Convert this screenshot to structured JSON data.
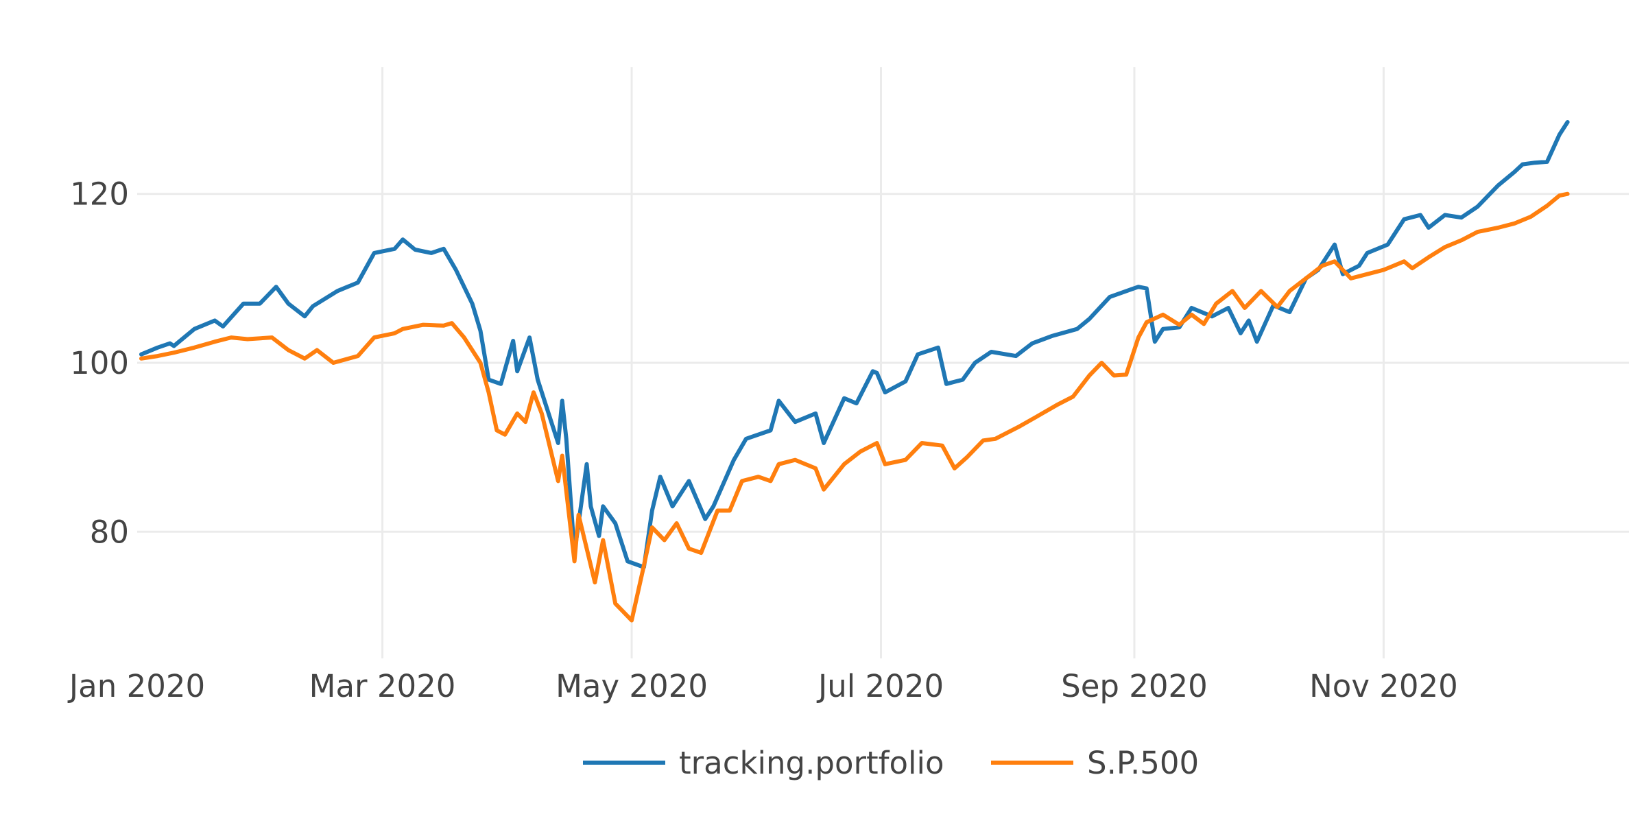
{
  "chart_data": {
    "type": "line",
    "title": "",
    "xlabel": "",
    "ylabel": "",
    "x_ticks": [
      "Jan 2020",
      "Mar 2020",
      "May 2020",
      "Jul 2020",
      "Sep 2020",
      "Nov 2020"
    ],
    "x_tick_dates": [
      "2020-01-01",
      "2020-03-01",
      "2020-05-01",
      "2020-07-01",
      "2020-09-01",
      "2020-11-01"
    ],
    "y_ticks": [
      80,
      100,
      120
    ],
    "xlim": [
      "2020-01-01",
      "2020-12-31"
    ],
    "ylim": [
      65,
      135
    ],
    "grid": true,
    "legend_position": "bottom",
    "colors": {
      "tracking.portfolio": "#1f77b4",
      "S.P.500": "#ff7f0e",
      "grid": "#ebebeb",
      "text": "#444444"
    },
    "series": [
      {
        "name": "tracking.portfolio",
        "points": [
          [
            "2020-01-02",
            101.0
          ],
          [
            "2020-01-06",
            101.8
          ],
          [
            "2020-01-09",
            102.3
          ],
          [
            "2020-01-10",
            102.0
          ],
          [
            "2020-01-15",
            104.0
          ],
          [
            "2020-01-20",
            105.0
          ],
          [
            "2020-01-22",
            104.3
          ],
          [
            "2020-01-27",
            107.0
          ],
          [
            "2020-01-31",
            107.0
          ],
          [
            "2020-02-04",
            109.0
          ],
          [
            "2020-02-07",
            107.0
          ],
          [
            "2020-02-11",
            105.5
          ],
          [
            "2020-02-13",
            106.7
          ],
          [
            "2020-02-19",
            108.5
          ],
          [
            "2020-02-24",
            109.5
          ],
          [
            "2020-02-28",
            113.0
          ],
          [
            "2020-03-04",
            113.5
          ],
          [
            "2020-03-06",
            114.6
          ],
          [
            "2020-03-09",
            113.4
          ],
          [
            "2020-03-13",
            113.0
          ],
          [
            "2020-03-16",
            113.5
          ],
          [
            "2020-03-19",
            111.0
          ],
          [
            "2020-03-23",
            107.0
          ],
          [
            "2020-03-25",
            103.8
          ],
          [
            "2020-03-27",
            98.0
          ],
          [
            "2020-03-30",
            97.5
          ],
          [
            "2020-04-02",
            102.6
          ],
          [
            "2020-04-03",
            99.0
          ],
          [
            "2020-04-06",
            103.0
          ],
          [
            "2020-04-08",
            98.0
          ],
          [
            "2020-04-10",
            95.0
          ],
          [
            "2020-04-13",
            90.5
          ],
          [
            "2020-04-14",
            95.5
          ],
          [
            "2020-04-15",
            91.0
          ],
          [
            "2020-04-17",
            77.5
          ],
          [
            "2020-04-20",
            88.0
          ],
          [
            "2020-04-21",
            83.0
          ],
          [
            "2020-04-23",
            79.5
          ],
          [
            "2020-04-24",
            83.0
          ],
          [
            "2020-04-27",
            81.0
          ],
          [
            "2020-04-30",
            76.5
          ],
          [
            "2020-05-04",
            75.8
          ],
          [
            "2020-05-06",
            82.5
          ],
          [
            "2020-05-08",
            86.5
          ],
          [
            "2020-05-11",
            83.0
          ],
          [
            "2020-05-15",
            86.0
          ],
          [
            "2020-05-19",
            81.5
          ],
          [
            "2020-05-21",
            83.0
          ],
          [
            "2020-05-26",
            88.5
          ],
          [
            "2020-05-29",
            91.0
          ],
          [
            "2020-06-04",
            92.0
          ],
          [
            "2020-06-06",
            95.5
          ],
          [
            "2020-06-10",
            93.0
          ],
          [
            "2020-06-15",
            94.0
          ],
          [
            "2020-06-17",
            90.5
          ],
          [
            "2020-06-22",
            95.8
          ],
          [
            "2020-06-25",
            95.2
          ],
          [
            "2020-06-29",
            99.0
          ],
          [
            "2020-06-30",
            98.8
          ],
          [
            "2020-07-02",
            96.5
          ],
          [
            "2020-07-07",
            97.8
          ],
          [
            "2020-07-10",
            101.0
          ],
          [
            "2020-07-15",
            101.8
          ],
          [
            "2020-07-17",
            97.5
          ],
          [
            "2020-07-21",
            98.0
          ],
          [
            "2020-07-24",
            100.0
          ],
          [
            "2020-07-28",
            101.3
          ],
          [
            "2020-08-03",
            100.8
          ],
          [
            "2020-08-07",
            102.3
          ],
          [
            "2020-08-12",
            103.2
          ],
          [
            "2020-08-18",
            104.0
          ],
          [
            "2020-08-21",
            105.2
          ],
          [
            "2020-08-26",
            107.8
          ],
          [
            "2020-09-02",
            109.0
          ],
          [
            "2020-09-04",
            108.8
          ],
          [
            "2020-09-06",
            102.5
          ],
          [
            "2020-09-08",
            104.0
          ],
          [
            "2020-09-12",
            104.2
          ],
          [
            "2020-09-15",
            106.5
          ],
          [
            "2020-09-20",
            105.5
          ],
          [
            "2020-09-24",
            106.5
          ],
          [
            "2020-09-27",
            103.5
          ],
          [
            "2020-09-29",
            105.0
          ],
          [
            "2020-10-01",
            102.5
          ],
          [
            "2020-10-05",
            106.8
          ],
          [
            "2020-10-09",
            106.0
          ],
          [
            "2020-10-13",
            110.0
          ],
          [
            "2020-10-16",
            111.0
          ],
          [
            "2020-10-20",
            114.0
          ],
          [
            "2020-10-22",
            110.5
          ],
          [
            "2020-10-26",
            111.5
          ],
          [
            "2020-10-28",
            113.0
          ],
          [
            "2020-11-02",
            114.0
          ],
          [
            "2020-11-06",
            117.0
          ],
          [
            "2020-11-10",
            117.5
          ],
          [
            "2020-11-12",
            116.0
          ],
          [
            "2020-11-16",
            117.5
          ],
          [
            "2020-11-20",
            117.2
          ],
          [
            "2020-11-24",
            118.5
          ],
          [
            "2020-11-29",
            121.0
          ],
          [
            "2020-12-03",
            122.6
          ],
          [
            "2020-12-05",
            123.5
          ],
          [
            "2020-12-08",
            123.7
          ],
          [
            "2020-12-11",
            123.8
          ],
          [
            "2020-12-14",
            127.0
          ],
          [
            "2020-12-16",
            128.5
          ]
        ]
      },
      {
        "name": "S.P.500",
        "points": [
          [
            "2020-01-02",
            100.5
          ],
          [
            "2020-01-06",
            100.8
          ],
          [
            "2020-01-10",
            101.2
          ],
          [
            "2020-01-15",
            101.8
          ],
          [
            "2020-01-20",
            102.5
          ],
          [
            "2020-01-24",
            103.0
          ],
          [
            "2020-01-28",
            102.8
          ],
          [
            "2020-02-03",
            103.0
          ],
          [
            "2020-02-07",
            101.5
          ],
          [
            "2020-02-11",
            100.5
          ],
          [
            "2020-02-14",
            101.5
          ],
          [
            "2020-02-18",
            100.0
          ],
          [
            "2020-02-24",
            100.8
          ],
          [
            "2020-02-28",
            103.0
          ],
          [
            "2020-03-04",
            103.5
          ],
          [
            "2020-03-06",
            104.0
          ],
          [
            "2020-03-11",
            104.5
          ],
          [
            "2020-03-16",
            104.4
          ],
          [
            "2020-03-18",
            104.7
          ],
          [
            "2020-03-21",
            103.0
          ],
          [
            "2020-03-25",
            100.0
          ],
          [
            "2020-03-27",
            96.5
          ],
          [
            "2020-03-29",
            92.0
          ],
          [
            "2020-03-31",
            91.5
          ],
          [
            "2020-04-03",
            94.0
          ],
          [
            "2020-04-05",
            93.0
          ],
          [
            "2020-04-07",
            96.5
          ],
          [
            "2020-04-09",
            94.0
          ],
          [
            "2020-04-13",
            86.0
          ],
          [
            "2020-04-14",
            89.0
          ],
          [
            "2020-04-17",
            76.5
          ],
          [
            "2020-04-18",
            82.0
          ],
          [
            "2020-04-22",
            74.0
          ],
          [
            "2020-04-24",
            79.0
          ],
          [
            "2020-04-27",
            71.5
          ],
          [
            "2020-05-01",
            69.5
          ],
          [
            "2020-05-04",
            76.0
          ],
          [
            "2020-05-06",
            80.5
          ],
          [
            "2020-05-09",
            79.0
          ],
          [
            "2020-05-12",
            81.0
          ],
          [
            "2020-05-15",
            78.0
          ],
          [
            "2020-05-18",
            77.5
          ],
          [
            "2020-05-22",
            82.5
          ],
          [
            "2020-05-25",
            82.5
          ],
          [
            "2020-05-28",
            86.0
          ],
          [
            "2020-06-01",
            86.5
          ],
          [
            "2020-06-04",
            86.0
          ],
          [
            "2020-06-06",
            88.0
          ],
          [
            "2020-06-10",
            88.5
          ],
          [
            "2020-06-15",
            87.5
          ],
          [
            "2020-06-17",
            85.0
          ],
          [
            "2020-06-22",
            88.0
          ],
          [
            "2020-06-26",
            89.5
          ],
          [
            "2020-06-30",
            90.5
          ],
          [
            "2020-07-02",
            88.0
          ],
          [
            "2020-07-07",
            88.5
          ],
          [
            "2020-07-11",
            90.5
          ],
          [
            "2020-07-16",
            90.2
          ],
          [
            "2020-07-19",
            87.5
          ],
          [
            "2020-07-22",
            88.8
          ],
          [
            "2020-07-26",
            90.8
          ],
          [
            "2020-07-29",
            91.0
          ],
          [
            "2020-08-04",
            92.5
          ],
          [
            "2020-08-08",
            93.6
          ],
          [
            "2020-08-13",
            95.0
          ],
          [
            "2020-08-17",
            96.0
          ],
          [
            "2020-08-21",
            98.5
          ],
          [
            "2020-08-24",
            100.0
          ],
          [
            "2020-08-27",
            98.5
          ],
          [
            "2020-08-30",
            98.6
          ],
          [
            "2020-09-02",
            103.0
          ],
          [
            "2020-09-04",
            104.8
          ],
          [
            "2020-09-08",
            105.7
          ],
          [
            "2020-09-12",
            104.5
          ],
          [
            "2020-09-15",
            105.7
          ],
          [
            "2020-09-18",
            104.6
          ],
          [
            "2020-09-21",
            107.0
          ],
          [
            "2020-09-25",
            108.5
          ],
          [
            "2020-09-28",
            106.5
          ],
          [
            "2020-10-02",
            108.5
          ],
          [
            "2020-10-06",
            106.6
          ],
          [
            "2020-10-09",
            108.5
          ],
          [
            "2020-10-13",
            110.0
          ],
          [
            "2020-10-17",
            111.5
          ],
          [
            "2020-10-20",
            112.0
          ],
          [
            "2020-10-24",
            110.0
          ],
          [
            "2020-10-28",
            110.5
          ],
          [
            "2020-11-01",
            111.0
          ],
          [
            "2020-11-06",
            112.0
          ],
          [
            "2020-11-08",
            111.2
          ],
          [
            "2020-11-12",
            112.5
          ],
          [
            "2020-11-16",
            113.7
          ],
          [
            "2020-11-20",
            114.5
          ],
          [
            "2020-11-24",
            115.5
          ],
          [
            "2020-11-29",
            116.0
          ],
          [
            "2020-12-03",
            116.5
          ],
          [
            "2020-12-07",
            117.3
          ],
          [
            "2020-12-11",
            118.6
          ],
          [
            "2020-12-14",
            119.8
          ],
          [
            "2020-12-16",
            120.0
          ]
        ]
      }
    ]
  }
}
